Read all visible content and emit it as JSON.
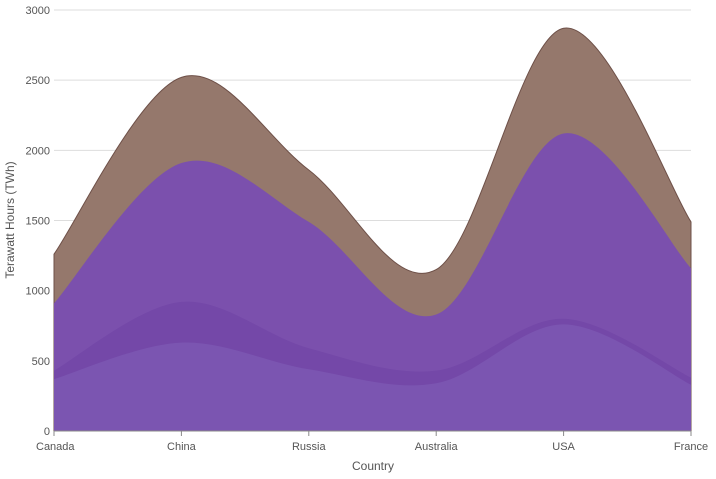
{
  "chart_data": {
    "type": "area",
    "stacked": true,
    "smooth": true,
    "xlabel": "Country",
    "ylabel": "Terawatt Hours (TWh)",
    "categories": [
      "Canada",
      "China",
      "Russia",
      "Australia",
      "USA",
      "France"
    ],
    "ylim": [
      0,
      3000
    ],
    "yticks": [
      0,
      500,
      1000,
      1500,
      2000,
      2500,
      3000
    ],
    "grid": true,
    "legend": "none",
    "series": [
      {
        "values": [
          370,
          630,
          440,
          340,
          760,
          330
        ],
        "color": "#7b55b1"
      },
      {
        "values": [
          60,
          290,
          150,
          90,
          40,
          50
        ],
        "color": "#7448a8"
      },
      {
        "values": [
          480,
          990,
          900,
          400,
          1320,
          780
        ],
        "color": "#7b50ad"
      },
      {
        "values": [
          350,
          610,
          370,
          320,
          750,
          330
        ],
        "color": "#95786c"
      }
    ]
  }
}
